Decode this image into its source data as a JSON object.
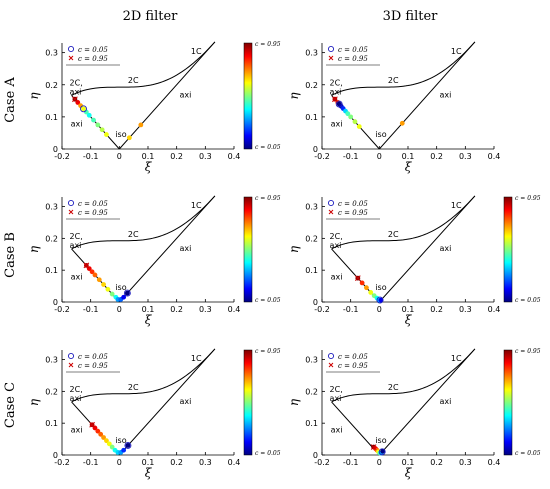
{
  "column_titles": [
    "2D filter",
    "3D filter"
  ],
  "row_titles": [
    "Case A",
    "Case B",
    "Case C"
  ],
  "colors": {
    "line": "#000000",
    "open_circle_marker": "#1f1fbf",
    "cross_marker": "#cc0000",
    "colorbar": [
      "#00007f",
      "#0000ff",
      "#007fff",
      "#00ffff",
      "#7fff7f",
      "#ffff00",
      "#ff7f00",
      "#ff0000",
      "#7f0000"
    ]
  },
  "shared": {
    "xlabel": "ξ",
    "ylabel": "η",
    "x_ticks": [
      "-0.2",
      "-0.1",
      "0",
      "0.1",
      "0.2",
      "0.3",
      "0.4"
    ],
    "y_ticks": [
      "0",
      "0.1",
      "0.2",
      "0.3"
    ],
    "legend": [
      {
        "marker": "open-circle",
        "text": "c = 0.05"
      },
      {
        "marker": "cross",
        "text": "c = 0.95"
      }
    ],
    "region_labels": [
      "1C",
      "2C",
      "2C,",
      "axi",
      "axi",
      "axi",
      "iso"
    ],
    "colorbar_top_label": "c = 0.95",
    "colorbar_bottom_label": "c = 0.05"
  },
  "chart_data": [
    {
      "type": "scatter",
      "title": "Case A / 2D filter",
      "xlabel": "ξ",
      "ylabel": "η",
      "xlim": [
        -0.2,
        0.4
      ],
      "ylim": [
        0,
        0.33
      ],
      "colorbar": {
        "range": [
          0.05,
          0.95
        ],
        "visible": true
      },
      "boundary": "Lumley triangle",
      "points": [
        {
          "x": -0.155,
          "y": 0.155,
          "c": 0.95
        },
        {
          "x": -0.145,
          "y": 0.145,
          "c": 0.85
        },
        {
          "x": -0.135,
          "y": 0.135,
          "c": 0.7
        },
        {
          "x": -0.125,
          "y": 0.125,
          "c": 0.6
        },
        {
          "x": -0.115,
          "y": 0.115,
          "c": 0.45
        },
        {
          "x": -0.105,
          "y": 0.105,
          "c": 0.4
        },
        {
          "x": -0.09,
          "y": 0.09,
          "c": 0.45
        },
        {
          "x": -0.075,
          "y": 0.075,
          "c": 0.5
        },
        {
          "x": -0.06,
          "y": 0.06,
          "c": 0.55
        },
        {
          "x": -0.045,
          "y": 0.045,
          "c": 0.6
        },
        {
          "x": 0.035,
          "y": 0.035,
          "c": 0.65
        },
        {
          "x": 0.075,
          "y": 0.075,
          "c": 0.7
        }
      ],
      "marker_circle": {
        "x": -0.125,
        "y": 0.125
      },
      "marker_cross": {
        "x": -0.155,
        "y": 0.155
      }
    },
    {
      "type": "scatter",
      "title": "Case A / 3D filter",
      "xlabel": "ξ",
      "ylabel": "η",
      "xlim": [
        -0.2,
        0.4
      ],
      "ylim": [
        0,
        0.33
      ],
      "colorbar": {
        "range": [
          0.05,
          0.95
        ],
        "visible": false
      },
      "boundary": "Lumley triangle",
      "points": [
        {
          "x": -0.155,
          "y": 0.155,
          "c": 0.9
        },
        {
          "x": -0.145,
          "y": 0.145,
          "c": 0.8
        },
        {
          "x": -0.14,
          "y": 0.14,
          "c": 0.05
        },
        {
          "x": -0.133,
          "y": 0.133,
          "c": 0.1
        },
        {
          "x": -0.126,
          "y": 0.126,
          "c": 0.2
        },
        {
          "x": -0.118,
          "y": 0.118,
          "c": 0.35
        },
        {
          "x": -0.11,
          "y": 0.11,
          "c": 0.45
        },
        {
          "x": -0.1,
          "y": 0.1,
          "c": 0.5
        },
        {
          "x": -0.085,
          "y": 0.085,
          "c": 0.55
        },
        {
          "x": -0.07,
          "y": 0.07,
          "c": 0.6
        },
        {
          "x": 0.08,
          "y": 0.08,
          "c": 0.7
        }
      ],
      "marker_circle": {
        "x": -0.14,
        "y": 0.14
      },
      "marker_cross": {
        "x": -0.155,
        "y": 0.155
      }
    },
    {
      "type": "scatter",
      "title": "Case B / 2D filter",
      "xlabel": "ξ",
      "ylabel": "η",
      "xlim": [
        -0.2,
        0.4
      ],
      "ylim": [
        0,
        0.33
      ],
      "colorbar": {
        "range": [
          0.05,
          0.95
        ],
        "visible": true
      },
      "boundary": "Lumley triangle",
      "points": [
        {
          "x": -0.115,
          "y": 0.115,
          "c": 0.9
        },
        {
          "x": -0.105,
          "y": 0.105,
          "c": 0.85
        },
        {
          "x": -0.095,
          "y": 0.095,
          "c": 0.8
        },
        {
          "x": -0.085,
          "y": 0.085,
          "c": 0.75
        },
        {
          "x": -0.07,
          "y": 0.07,
          "c": 0.7
        },
        {
          "x": -0.055,
          "y": 0.055,
          "c": 0.65
        },
        {
          "x": -0.04,
          "y": 0.04,
          "c": 0.6
        },
        {
          "x": -0.025,
          "y": 0.025,
          "c": 0.5
        },
        {
          "x": -0.012,
          "y": 0.015,
          "c": 0.4
        },
        {
          "x": -0.005,
          "y": 0.008,
          "c": 0.3
        },
        {
          "x": 0.005,
          "y": 0.008,
          "c": 0.25
        },
        {
          "x": 0.015,
          "y": 0.015,
          "c": 0.15
        },
        {
          "x": 0.028,
          "y": 0.028,
          "c": 0.05
        }
      ],
      "marker_circle": {
        "x": 0.028,
        "y": 0.028
      },
      "marker_cross": {
        "x": -0.115,
        "y": 0.115
      }
    },
    {
      "type": "scatter",
      "title": "Case B / 3D filter",
      "xlabel": "ξ",
      "ylabel": "η",
      "xlim": [
        -0.2,
        0.4
      ],
      "ylim": [
        0,
        0.33
      ],
      "colorbar": {
        "range": [
          0.05,
          0.95
        ],
        "visible": true
      },
      "boundary": "Lumley triangle",
      "points": [
        {
          "x": -0.075,
          "y": 0.075,
          "c": 0.95
        },
        {
          "x": -0.06,
          "y": 0.06,
          "c": 0.8
        },
        {
          "x": -0.045,
          "y": 0.045,
          "c": 0.7
        },
        {
          "x": -0.03,
          "y": 0.03,
          "c": 0.6
        },
        {
          "x": -0.018,
          "y": 0.02,
          "c": 0.5
        },
        {
          "x": -0.008,
          "y": 0.012,
          "c": 0.4
        },
        {
          "x": 0.0,
          "y": 0.006,
          "c": 0.3
        },
        {
          "x": 0.006,
          "y": 0.006,
          "c": 0.15
        }
      ],
      "marker_circle": {
        "x": 0.002,
        "y": 0.006
      },
      "marker_cross": {
        "x": -0.075,
        "y": 0.075
      }
    },
    {
      "type": "scatter",
      "title": "Case C / 2D filter",
      "xlabel": "ξ",
      "ylabel": "η",
      "xlim": [
        -0.2,
        0.4
      ],
      "ylim": [
        0,
        0.33
      ],
      "colorbar": {
        "range": [
          0.05,
          0.95
        ],
        "visible": true
      },
      "boundary": "Lumley triangle",
      "points": [
        {
          "x": -0.095,
          "y": 0.095,
          "c": 0.9
        },
        {
          "x": -0.085,
          "y": 0.085,
          "c": 0.85
        },
        {
          "x": -0.075,
          "y": 0.075,
          "c": 0.8
        },
        {
          "x": -0.065,
          "y": 0.065,
          "c": 0.75
        },
        {
          "x": -0.055,
          "y": 0.055,
          "c": 0.7
        },
        {
          "x": -0.045,
          "y": 0.045,
          "c": 0.65
        },
        {
          "x": -0.035,
          "y": 0.035,
          "c": 0.6
        },
        {
          "x": -0.025,
          "y": 0.025,
          "c": 0.5
        },
        {
          "x": -0.015,
          "y": 0.015,
          "c": 0.4
        },
        {
          "x": -0.005,
          "y": 0.008,
          "c": 0.35
        },
        {
          "x": 0.005,
          "y": 0.008,
          "c": 0.3
        },
        {
          "x": 0.015,
          "y": 0.015,
          "c": 0.2
        },
        {
          "x": 0.03,
          "y": 0.03,
          "c": 0.05
        }
      ],
      "marker_circle": {
        "x": 0.03,
        "y": 0.03
      },
      "marker_cross": {
        "x": -0.095,
        "y": 0.095
      }
    },
    {
      "type": "scatter",
      "title": "Case C / 3D filter",
      "xlabel": "ξ",
      "ylabel": "η",
      "xlim": [
        -0.2,
        0.4
      ],
      "ylim": [
        0,
        0.33
      ],
      "colorbar": {
        "range": [
          0.05,
          0.95
        ],
        "visible": true
      },
      "boundary": "Lumley triangle",
      "points": [
        {
          "x": -0.02,
          "y": 0.025,
          "c": 0.95
        },
        {
          "x": -0.013,
          "y": 0.02,
          "c": 0.85
        },
        {
          "x": -0.008,
          "y": 0.015,
          "c": 0.75
        },
        {
          "x": -0.003,
          "y": 0.01,
          "c": 0.6
        },
        {
          "x": 0.002,
          "y": 0.006,
          "c": 0.45
        },
        {
          "x": 0.007,
          "y": 0.006,
          "c": 0.3
        },
        {
          "x": 0.012,
          "y": 0.012,
          "c": 0.05
        }
      ],
      "marker_circle": {
        "x": 0.01,
        "y": 0.01
      },
      "marker_cross": {
        "x": -0.02,
        "y": 0.025
      }
    }
  ]
}
